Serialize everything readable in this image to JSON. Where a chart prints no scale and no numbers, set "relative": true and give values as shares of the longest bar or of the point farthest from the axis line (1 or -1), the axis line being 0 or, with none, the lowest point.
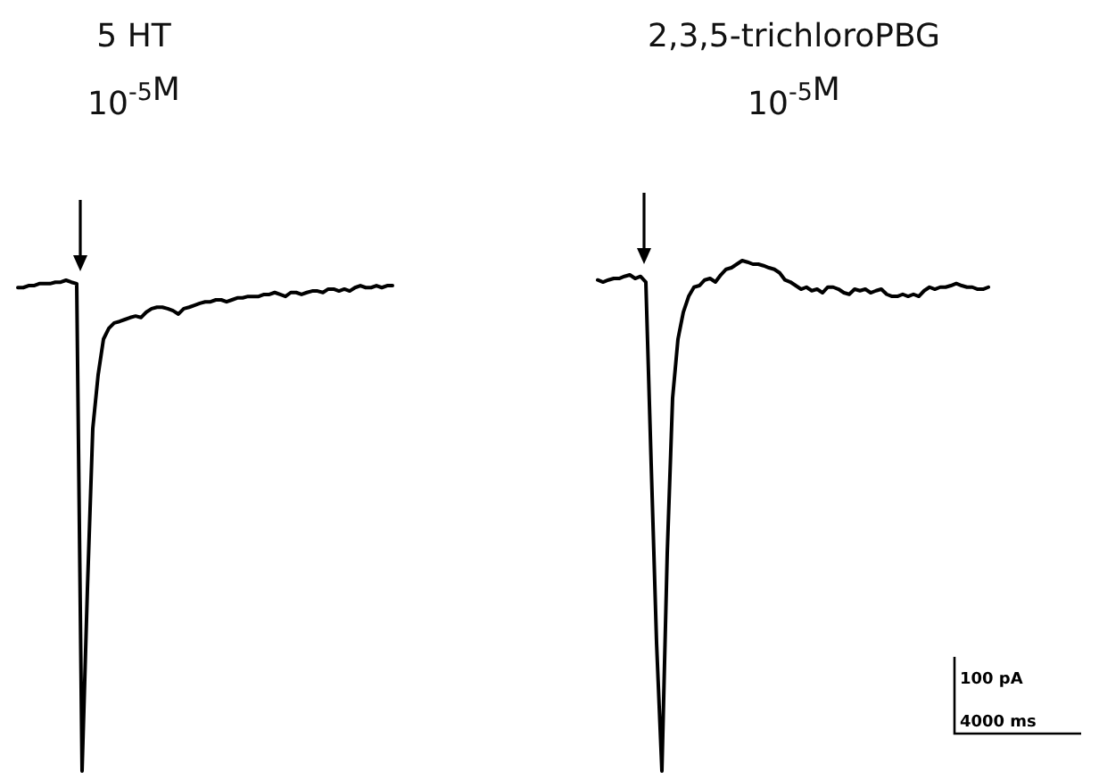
{
  "chart_data": [
    {
      "type": "line",
      "title": "5 HT",
      "subtitle": "10$^{-5}$M",
      "relative": true,
      "categories": [
        null,
        null,
        null,
        null,
        null,
        null,
        null,
        null,
        null,
        null,
        null,
        null,
        null,
        null,
        null,
        null,
        null,
        null,
        null,
        null,
        null,
        null,
        null,
        null,
        null,
        null,
        null,
        null,
        null,
        null,
        null,
        null,
        null,
        null,
        null,
        null,
        null,
        null,
        null,
        null,
        null,
        null,
        null,
        null,
        null,
        null,
        null,
        null,
        null,
        null,
        null,
        null,
        null,
        null,
        null,
        null,
        null,
        null,
        null,
        null,
        null,
        null,
        null,
        null,
        null,
        null,
        null,
        null,
        null,
        null,
        null
      ],
      "series": [
        {
          "color": "#000000",
          "values": [
            0.985,
            0.985,
            0.989,
            0.989,
            0.993,
            0.993,
            0.993,
            0.996,
            0.996,
            1,
            0.996,
            0.993,
            0,
            0.371,
            0.698,
            0.807,
            0.88,
            0.902,
            0.913,
            0.916,
            0.92,
            0.924,
            0.927,
            0.924,
            0.935,
            0.942,
            0.945,
            0.945,
            0.942,
            0.938,
            0.931,
            0.942,
            0.945,
            0.949,
            0.953,
            0.956,
            0.956,
            0.96,
            0.96,
            0.956,
            0.96,
            0.964,
            0.964,
            0.967,
            0.967,
            0.967,
            0.971,
            0.971,
            0.975,
            0.971,
            0.967,
            0.975,
            0.975,
            0.971,
            0.975,
            0.978,
            0.978,
            0.975,
            0.982,
            0.982,
            0.978,
            0.982,
            0.978,
            0.985,
            0.989,
            0.985,
            0.985,
            0.989,
            0.985,
            0.989,
            0.989
          ]
        }
      ]
    },
    {
      "type": "line",
      "title": "2,3,5-trichloroPBG",
      "subtitle": "10$^{-5}$M",
      "relative": true,
      "categories": [
        null,
        null,
        null,
        null,
        null,
        null,
        null,
        null,
        null,
        null,
        null,
        null,
        null,
        null,
        null,
        null,
        null,
        null,
        null,
        null,
        null,
        null,
        null,
        null,
        null,
        null,
        null,
        null,
        null,
        null,
        null,
        null,
        null,
        null,
        null,
        null,
        null,
        null,
        null,
        null,
        null,
        null,
        null,
        null,
        null,
        null,
        null,
        null,
        null,
        null,
        null,
        null,
        null,
        null,
        null,
        null,
        null,
        null,
        null,
        null,
        null,
        null,
        null,
        null,
        null,
        null,
        null,
        null,
        null,
        null,
        null,
        null,
        null,
        null
      ],
      "series": [
        {
          "color": "#000000",
          "values": [
            0.962,
            0.958,
            0.962,
            0.965,
            0.965,
            0.969,
            0.972,
            0.965,
            0.969,
            0.958,
            0.601,
            0.252,
            0,
            0.427,
            0.731,
            0.846,
            0.899,
            0.93,
            0.948,
            0.951,
            0.962,
            0.965,
            0.958,
            0.972,
            0.983,
            0.986,
            0.993,
            1,
            0.997,
            0.993,
            0.993,
            0.99,
            0.986,
            0.983,
            0.976,
            0.962,
            0.958,
            0.951,
            0.944,
            0.948,
            0.941,
            0.944,
            0.937,
            0.948,
            0.948,
            0.944,
            0.937,
            0.934,
            0.944,
            0.941,
            0.944,
            0.937,
            0.941,
            0.944,
            0.934,
            0.93,
            0.93,
            0.934,
            0.93,
            0.934,
            0.93,
            0.941,
            0.948,
            0.944,
            0.948,
            0.948,
            0.951,
            0.955,
            0.951,
            0.948,
            0.948,
            0.944,
            0.944,
            0.948
          ]
        }
      ],
      "annotations": [
        "100 pA",
        "4000 ms"
      ]
    }
  ]
}
